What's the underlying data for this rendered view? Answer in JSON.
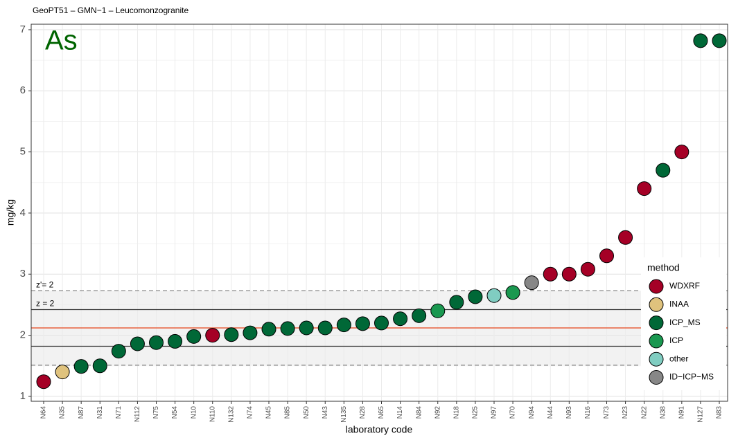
{
  "chart_data": {
    "type": "scatter",
    "title": "GeoPT51 – GMN−1 – Leucomonzogranite",
    "element": "As",
    "xlabel": "laboratory code",
    "ylabel": "mg/kg",
    "legend_title": "method",
    "categories": [
      "N64",
      "N35",
      "N87",
      "N31",
      "N71",
      "N112",
      "N75",
      "N54",
      "N10",
      "N110",
      "N132",
      "N74",
      "N45",
      "N85",
      "N50",
      "N43",
      "N135",
      "N28",
      "N65",
      "N14",
      "N84",
      "N92",
      "N18",
      "N25",
      "N97",
      "N70",
      "N94",
      "N44",
      "N93",
      "N16",
      "N73",
      "N23",
      "N22",
      "N38",
      "N91",
      "N127",
      "N83"
    ],
    "series": [
      {
        "name": "WDXRF",
        "color": "#a50026",
        "x": [
          "N64",
          "N110",
          "N44",
          "N93",
          "N16",
          "N73",
          "N23",
          "N22",
          "N91"
        ],
        "values": [
          1.24,
          2.0,
          3.0,
          3.0,
          3.08,
          3.3,
          3.6,
          4.4,
          5.0
        ]
      },
      {
        "name": "INAA",
        "color": "#dfc27d",
        "x": [
          "N35"
        ],
        "values": [
          1.4
        ]
      },
      {
        "name": "ICP_MS",
        "color": "#006837",
        "x": [
          "N87",
          "N31",
          "N71",
          "N112",
          "N75",
          "N54",
          "N10",
          "N132",
          "N74",
          "N45",
          "N85",
          "N50",
          "N43",
          "N135",
          "N28",
          "N65",
          "N14",
          "N84",
          "N18",
          "N25",
          "N38",
          "N127",
          "N83"
        ],
        "values": [
          1.49,
          1.5,
          1.74,
          1.86,
          1.88,
          1.9,
          1.98,
          2.01,
          2.04,
          2.1,
          2.11,
          2.12,
          2.12,
          2.17,
          2.19,
          2.2,
          2.27,
          2.32,
          2.54,
          2.63,
          4.7,
          6.82,
          6.82
        ]
      },
      {
        "name": "ICP",
        "color": "#1a9850",
        "x": [
          "N92",
          "N70"
        ],
        "values": [
          2.4,
          2.7
        ]
      },
      {
        "name": "other",
        "color": "#80cdc1",
        "x": [
          "N97"
        ],
        "values": [
          2.65
        ]
      },
      {
        "name": "ID−ICP−MS",
        "color": "#878787",
        "x": [
          "N94"
        ],
        "values": [
          2.86
        ]
      }
    ],
    "assigned_value": 2.12,
    "z_lines": {
      "label": "z = 2",
      "values": [
        1.82,
        2.42
      ]
    },
    "z_prime_lines": {
      "label": "z'= 2",
      "values": [
        1.51,
        2.73
      ]
    },
    "ylim": [
      0.92,
      7.09
    ],
    "yticks": [
      1,
      2,
      3,
      4,
      5,
      6,
      7
    ],
    "grid": true
  }
}
